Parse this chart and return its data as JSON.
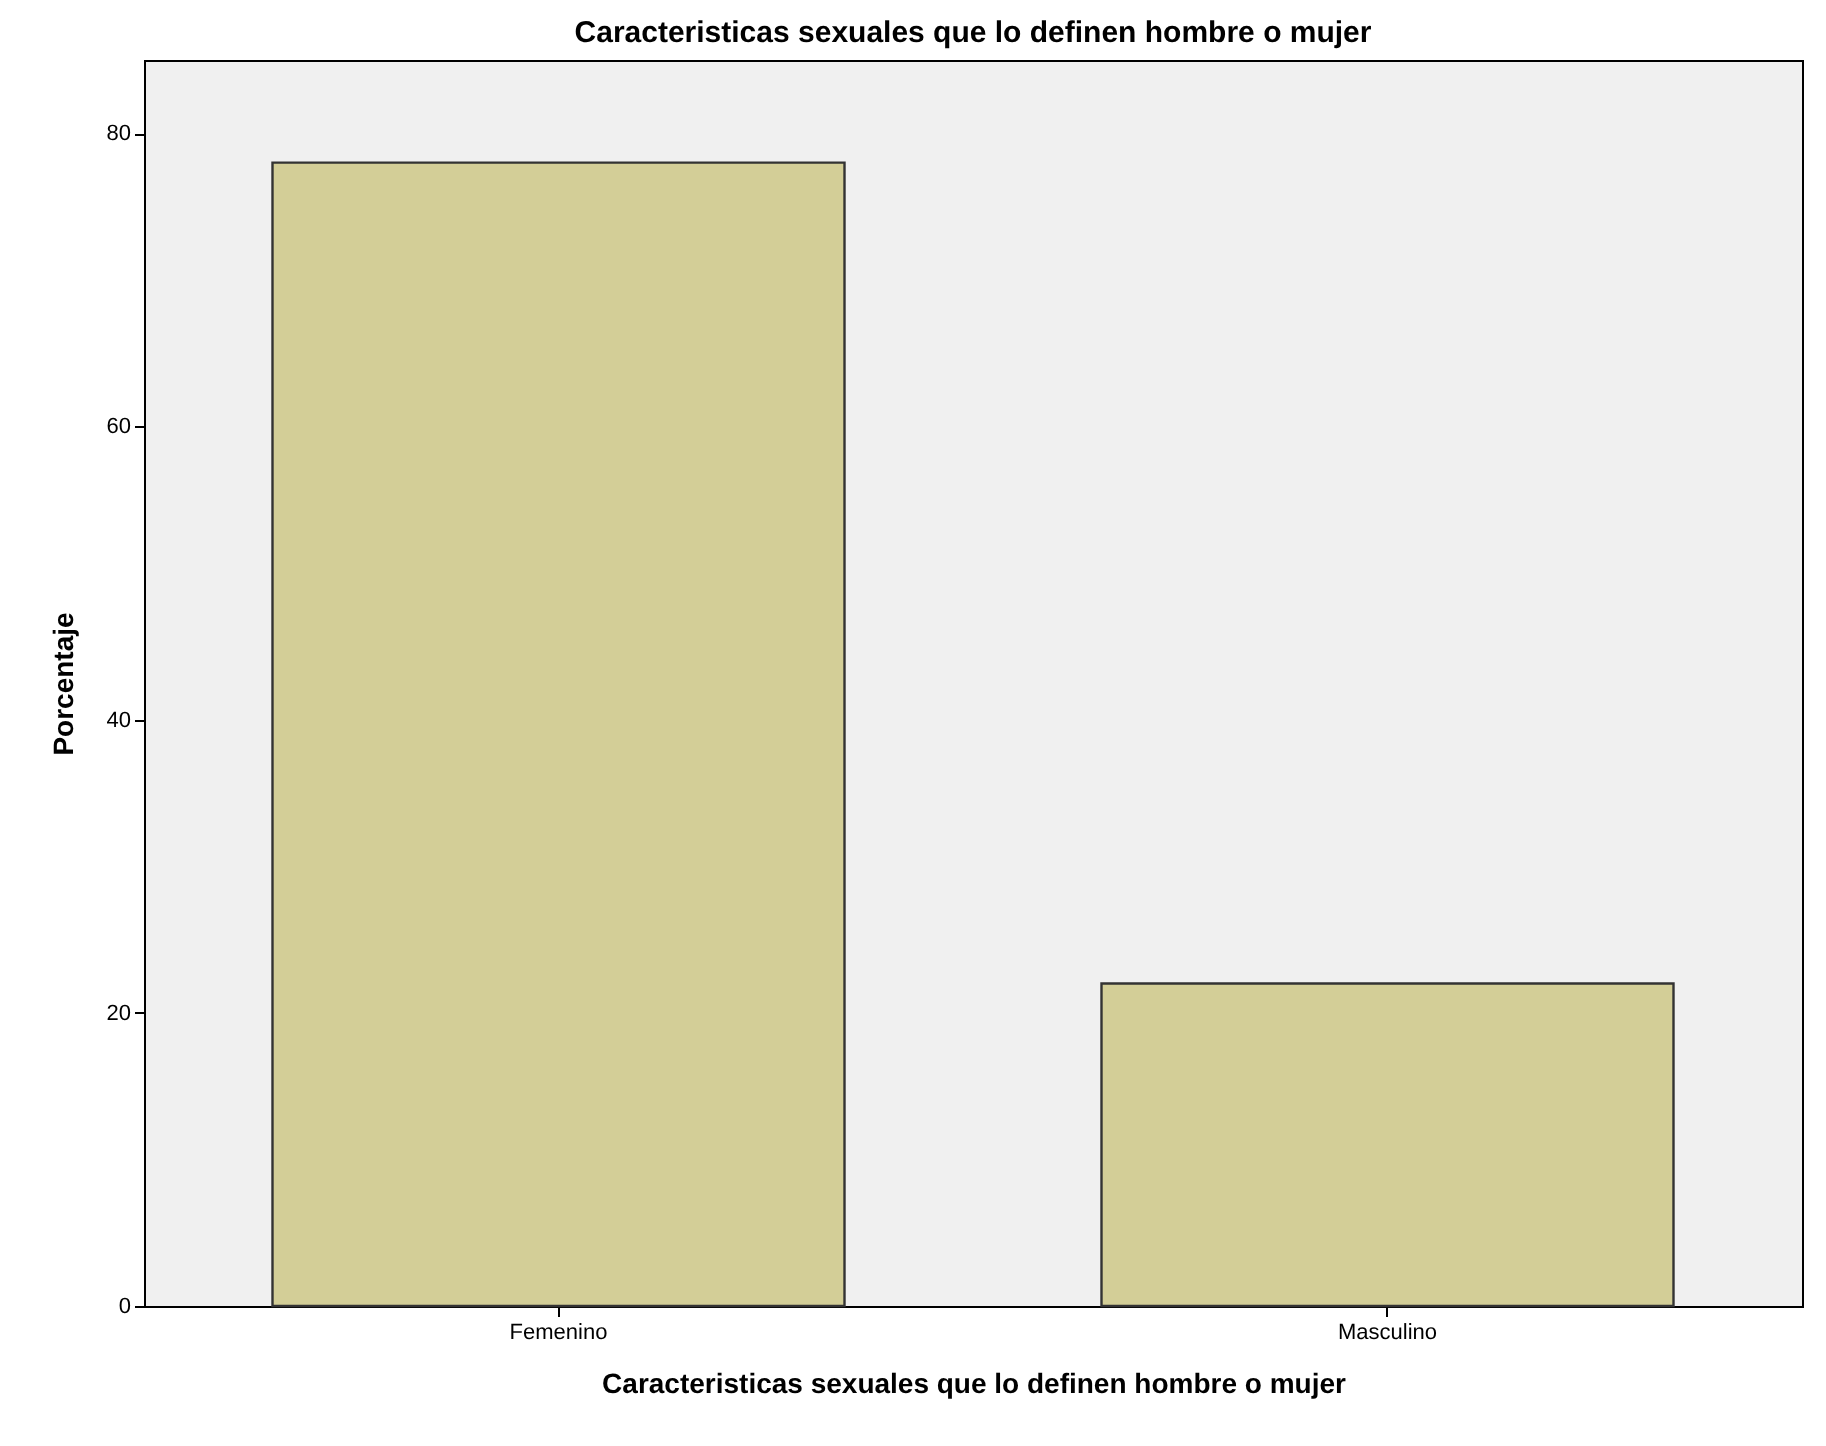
{
  "chart_data": {
    "type": "bar",
    "title": "Caracteristicas sexuales que lo definen hombre o mujer",
    "xlabel": "Caracteristicas sexuales que lo definen hombre o mujer",
    "ylabel": "Porcentaje",
    "categories": [
      "Femenino",
      "Masculino"
    ],
    "values": [
      78,
      22
    ],
    "color": "#d3ce97",
    "ylim": [
      0,
      85
    ],
    "yticks": [
      0,
      20,
      40,
      60,
      80
    ],
    "grid": false
  }
}
